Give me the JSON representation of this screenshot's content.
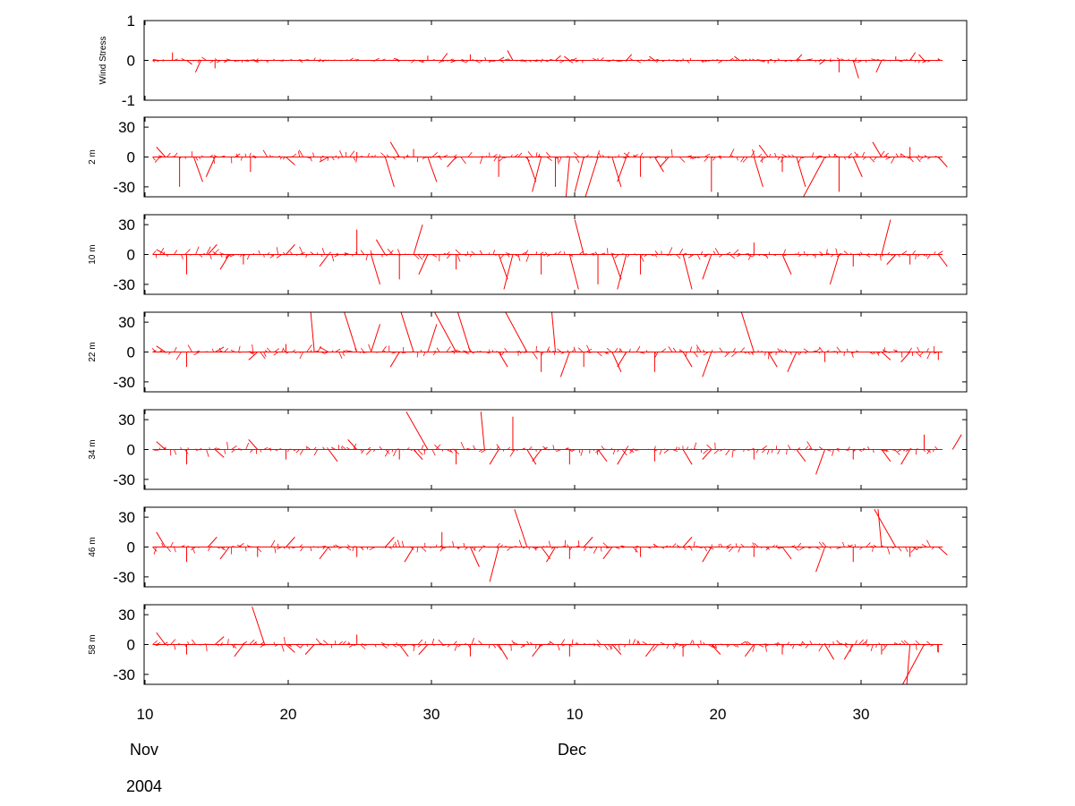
{
  "figure": {
    "line_color": "#ff0000",
    "background": "#ffffff",
    "month_labels": [
      "Nov",
      "Dec"
    ],
    "year_label": "2004"
  },
  "chart_data": [
    {
      "type": "line",
      "title": "",
      "ylabel": "Wind Stress",
      "ylim": [
        -1,
        1
      ],
      "yticks": [
        "1",
        "0",
        "-1"
      ],
      "xlim": [
        0,
        58
      ],
      "xticks": [
        "10",
        "20",
        "30",
        "10",
        "20",
        "30"
      ],
      "grid": false,
      "series": [
        {
          "x": [
            1.0,
            2.0,
            3.0,
            4.0,
            5.0,
            7.0,
            10.0,
            13.0,
            16.0,
            18.0,
            20.0,
            21.0,
            22.0,
            23.0,
            25.0,
            26.0,
            28.0,
            29.0,
            30.0,
            32.0,
            34.0,
            36.0,
            38.0,
            40.0,
            42.0,
            44.0,
            46.0,
            48.0,
            49.0,
            50.0,
            52.0,
            53.0,
            54.0,
            55.0,
            56.0
          ],
          "y": [
            0.02,
            0.2,
            -0.1,
            -0.3,
            -0.2,
            -0.02,
            0.0,
            0.02,
            0.0,
            0.05,
            0.12,
            0.18,
            -0.05,
            0.15,
            0.08,
            0.25,
            -0.05,
            0.12,
            0.1,
            0.05,
            0.15,
            0.1,
            0.05,
            0.0,
            0.1,
            -0.08,
            0.15,
            -0.1,
            -0.3,
            -0.45,
            -0.3,
            0.1,
            0.2,
            0.15,
            0.05
          ]
        }
      ]
    },
    {
      "type": "line",
      "title": "",
      "ylabel": "2 m",
      "ylim": [
        -40,
        40
      ],
      "yticks": [
        "30",
        "0",
        "-30"
      ],
      "xlim": [
        0,
        58
      ],
      "xticks": [
        "10",
        "20",
        "30",
        "10",
        "20",
        "30"
      ],
      "grid": false,
      "series": [
        {
          "x": [
            1.5,
            2.5,
            3.5,
            5.0,
            7.5,
            10.0,
            13.0,
            15.0,
            17.0,
            18.0,
            19.0,
            20.0,
            22.0,
            25.0,
            27.0,
            28.0,
            29.0,
            30.0,
            31.0,
            32.0,
            33.0,
            34.0,
            35.0,
            36.0,
            37.0,
            40.0,
            43.0,
            44.0,
            45.0,
            46.0,
            48.0,
            49.0,
            50.0,
            52.0,
            54.0,
            56.0
          ],
          "y": [
            10,
            -30,
            -25,
            -20,
            -15,
            -8,
            -5,
            5,
            -30,
            15,
            8,
            -25,
            -10,
            -20,
            -25,
            -35,
            -30,
            -40,
            -35,
            -40,
            -30,
            -25,
            -20,
            -15,
            -10,
            -35,
            -30,
            12,
            -15,
            -30,
            -40,
            -35,
            -20,
            15,
            10,
            -10
          ]
        }
      ]
    },
    {
      "type": "line",
      "title": "",
      "ylabel": "10 m",
      "ylim": [
        -40,
        40
      ],
      "yticks": [
        "30",
        "0",
        "-30"
      ],
      "xlim": [
        0,
        58
      ],
      "xticks": [
        "10",
        "20",
        "30",
        "10",
        "20",
        "30"
      ],
      "grid": false,
      "series": [
        {
          "x": [
            1.5,
            3.0,
            4.5,
            6.0,
            7.0,
            10.0,
            13.0,
            15.0,
            16.0,
            17.0,
            18.0,
            19.0,
            20.0,
            22.0,
            25.0,
            26.0,
            28.0,
            30.0,
            31.0,
            32.0,
            33.0,
            34.0,
            35.0,
            38.0,
            40.0,
            43.0,
            45.0,
            49.0,
            50.0,
            52.0,
            53.0,
            54.0,
            56.0
          ],
          "y": [
            5,
            -20,
            10,
            -15,
            -10,
            10,
            -12,
            25,
            -30,
            15,
            -25,
            30,
            -20,
            -15,
            -25,
            -35,
            -20,
            -35,
            35,
            -30,
            -25,
            -35,
            -20,
            -35,
            -25,
            12,
            -20,
            -30,
            -12,
            35,
            -10,
            -10,
            -12
          ]
        }
      ]
    },
    {
      "type": "line",
      "title": "",
      "ylabel": "22 m",
      "ylim": [
        -40,
        40
      ],
      "yticks": [
        "30",
        "0",
        "-30"
      ],
      "xlim": [
        0,
        58
      ],
      "xticks": [
        "10",
        "20",
        "30",
        "10",
        "20",
        "30"
      ],
      "grid": false,
      "series": [
        {
          "x": [
            1.5,
            3.0,
            5.0,
            8.0,
            10.0,
            12.0,
            13.0,
            15.0,
            16.0,
            18.0,
            19.0,
            20.0,
            22.0,
            23.0,
            25.0,
            27.0,
            28.0,
            29.0,
            30.0,
            31.0,
            33.0,
            34.0,
            36.0,
            38.0,
            40.0,
            43.0,
            44.0,
            46.0,
            48.0,
            52.0,
            54.0,
            56.0
          ],
          "y": [
            6,
            -15,
            5,
            -8,
            8,
            40,
            5,
            40,
            28,
            -15,
            40,
            28,
            40,
            40,
            -15,
            40,
            -20,
            40,
            -25,
            -15,
            -20,
            -15,
            -20,
            -15,
            -25,
            40,
            -15,
            -20,
            -10,
            -8,
            -10,
            -8
          ]
        }
      ]
    },
    {
      "type": "line",
      "title": "",
      "ylabel": "34 m",
      "ylim": [
        -40,
        40
      ],
      "yticks": [
        "30",
        "0",
        "-30"
      ],
      "xlim": [
        0,
        58
      ],
      "xticks": [
        "10",
        "20",
        "30",
        "10",
        "20",
        "30"
      ],
      "grid": false,
      "series": [
        {
          "x": [
            1.5,
            3.0,
            5.0,
            8.0,
            10.0,
            13.0,
            15.0,
            18.0,
            19.0,
            20.0,
            22.0,
            24.0,
            25.0,
            26.0,
            27.0,
            28.0,
            30.0,
            32.0,
            34.0,
            36.0,
            38.0,
            40.0,
            43.0,
            46.0,
            48.0,
            50.0,
            52.0,
            54.0,
            55.0,
            57.0
          ],
          "y": [
            8,
            -15,
            -8,
            10,
            -10,
            -12,
            10,
            -10,
            -10,
            38,
            -15,
            38,
            -15,
            33,
            -15,
            -12,
            -15,
            -12,
            -15,
            -12,
            -15,
            -10,
            -10,
            -12,
            -25,
            -10,
            -12,
            -15,
            15,
            15
          ]
        }
      ]
    },
    {
      "type": "line",
      "title": "",
      "ylabel": "46 m",
      "ylim": [
        -40,
        40
      ],
      "yticks": [
        "30",
        "0",
        "-30"
      ],
      "xlim": [
        0,
        58
      ],
      "xticks": [
        "10",
        "20",
        "30",
        "10",
        "20",
        "30"
      ],
      "grid": false,
      "series": [
        {
          "x": [
            1.5,
            3.0,
            4.5,
            6.0,
            8.0,
            10.0,
            13.0,
            15.0,
            17.0,
            19.0,
            21.0,
            23.0,
            25.0,
            27.0,
            28.0,
            29.0,
            30.0,
            31.0,
            33.0,
            35.0,
            38.0,
            40.0,
            43.0,
            45.0,
            48.0,
            50.0,
            52.0,
            53.0,
            54.0,
            56.0
          ],
          "y": [
            15,
            -15,
            10,
            -12,
            -10,
            10,
            -12,
            -10,
            10,
            -15,
            15,
            -20,
            -35,
            38,
            -12,
            -15,
            -12,
            10,
            -12,
            -10,
            10,
            -15,
            -10,
            -12,
            -25,
            -15,
            38,
            38,
            -10,
            -8
          ]
        }
      ]
    },
    {
      "type": "line",
      "title": "",
      "ylabel": "58 m",
      "ylim": [
        -40,
        40
      ],
      "yticks": [
        "30",
        "0",
        "-30"
      ],
      "xlim": [
        0,
        58
      ],
      "xticks": [
        "10",
        "20",
        "30",
        "10",
        "20",
        "30"
      ],
      "grid": false,
      "series": [
        {
          "x": [
            1.5,
            3.0,
            5.0,
            7.0,
            8.5,
            10.0,
            12.0,
            15.0,
            18.0,
            20.0,
            23.0,
            25.0,
            28.0,
            30.0,
            33.0,
            36.0,
            38.0,
            40.0,
            43.0,
            45.0,
            48.0,
            50.0,
            52.0,
            54.0,
            55.0,
            56.0
          ],
          "y": [
            12,
            -10,
            8,
            -12,
            38,
            -8,
            -10,
            10,
            -12,
            -10,
            -12,
            -15,
            -12,
            -12,
            -10,
            -12,
            -12,
            -10,
            -12,
            -10,
            -15,
            -15,
            -10,
            -45,
            -40,
            -8
          ]
        }
      ]
    }
  ]
}
